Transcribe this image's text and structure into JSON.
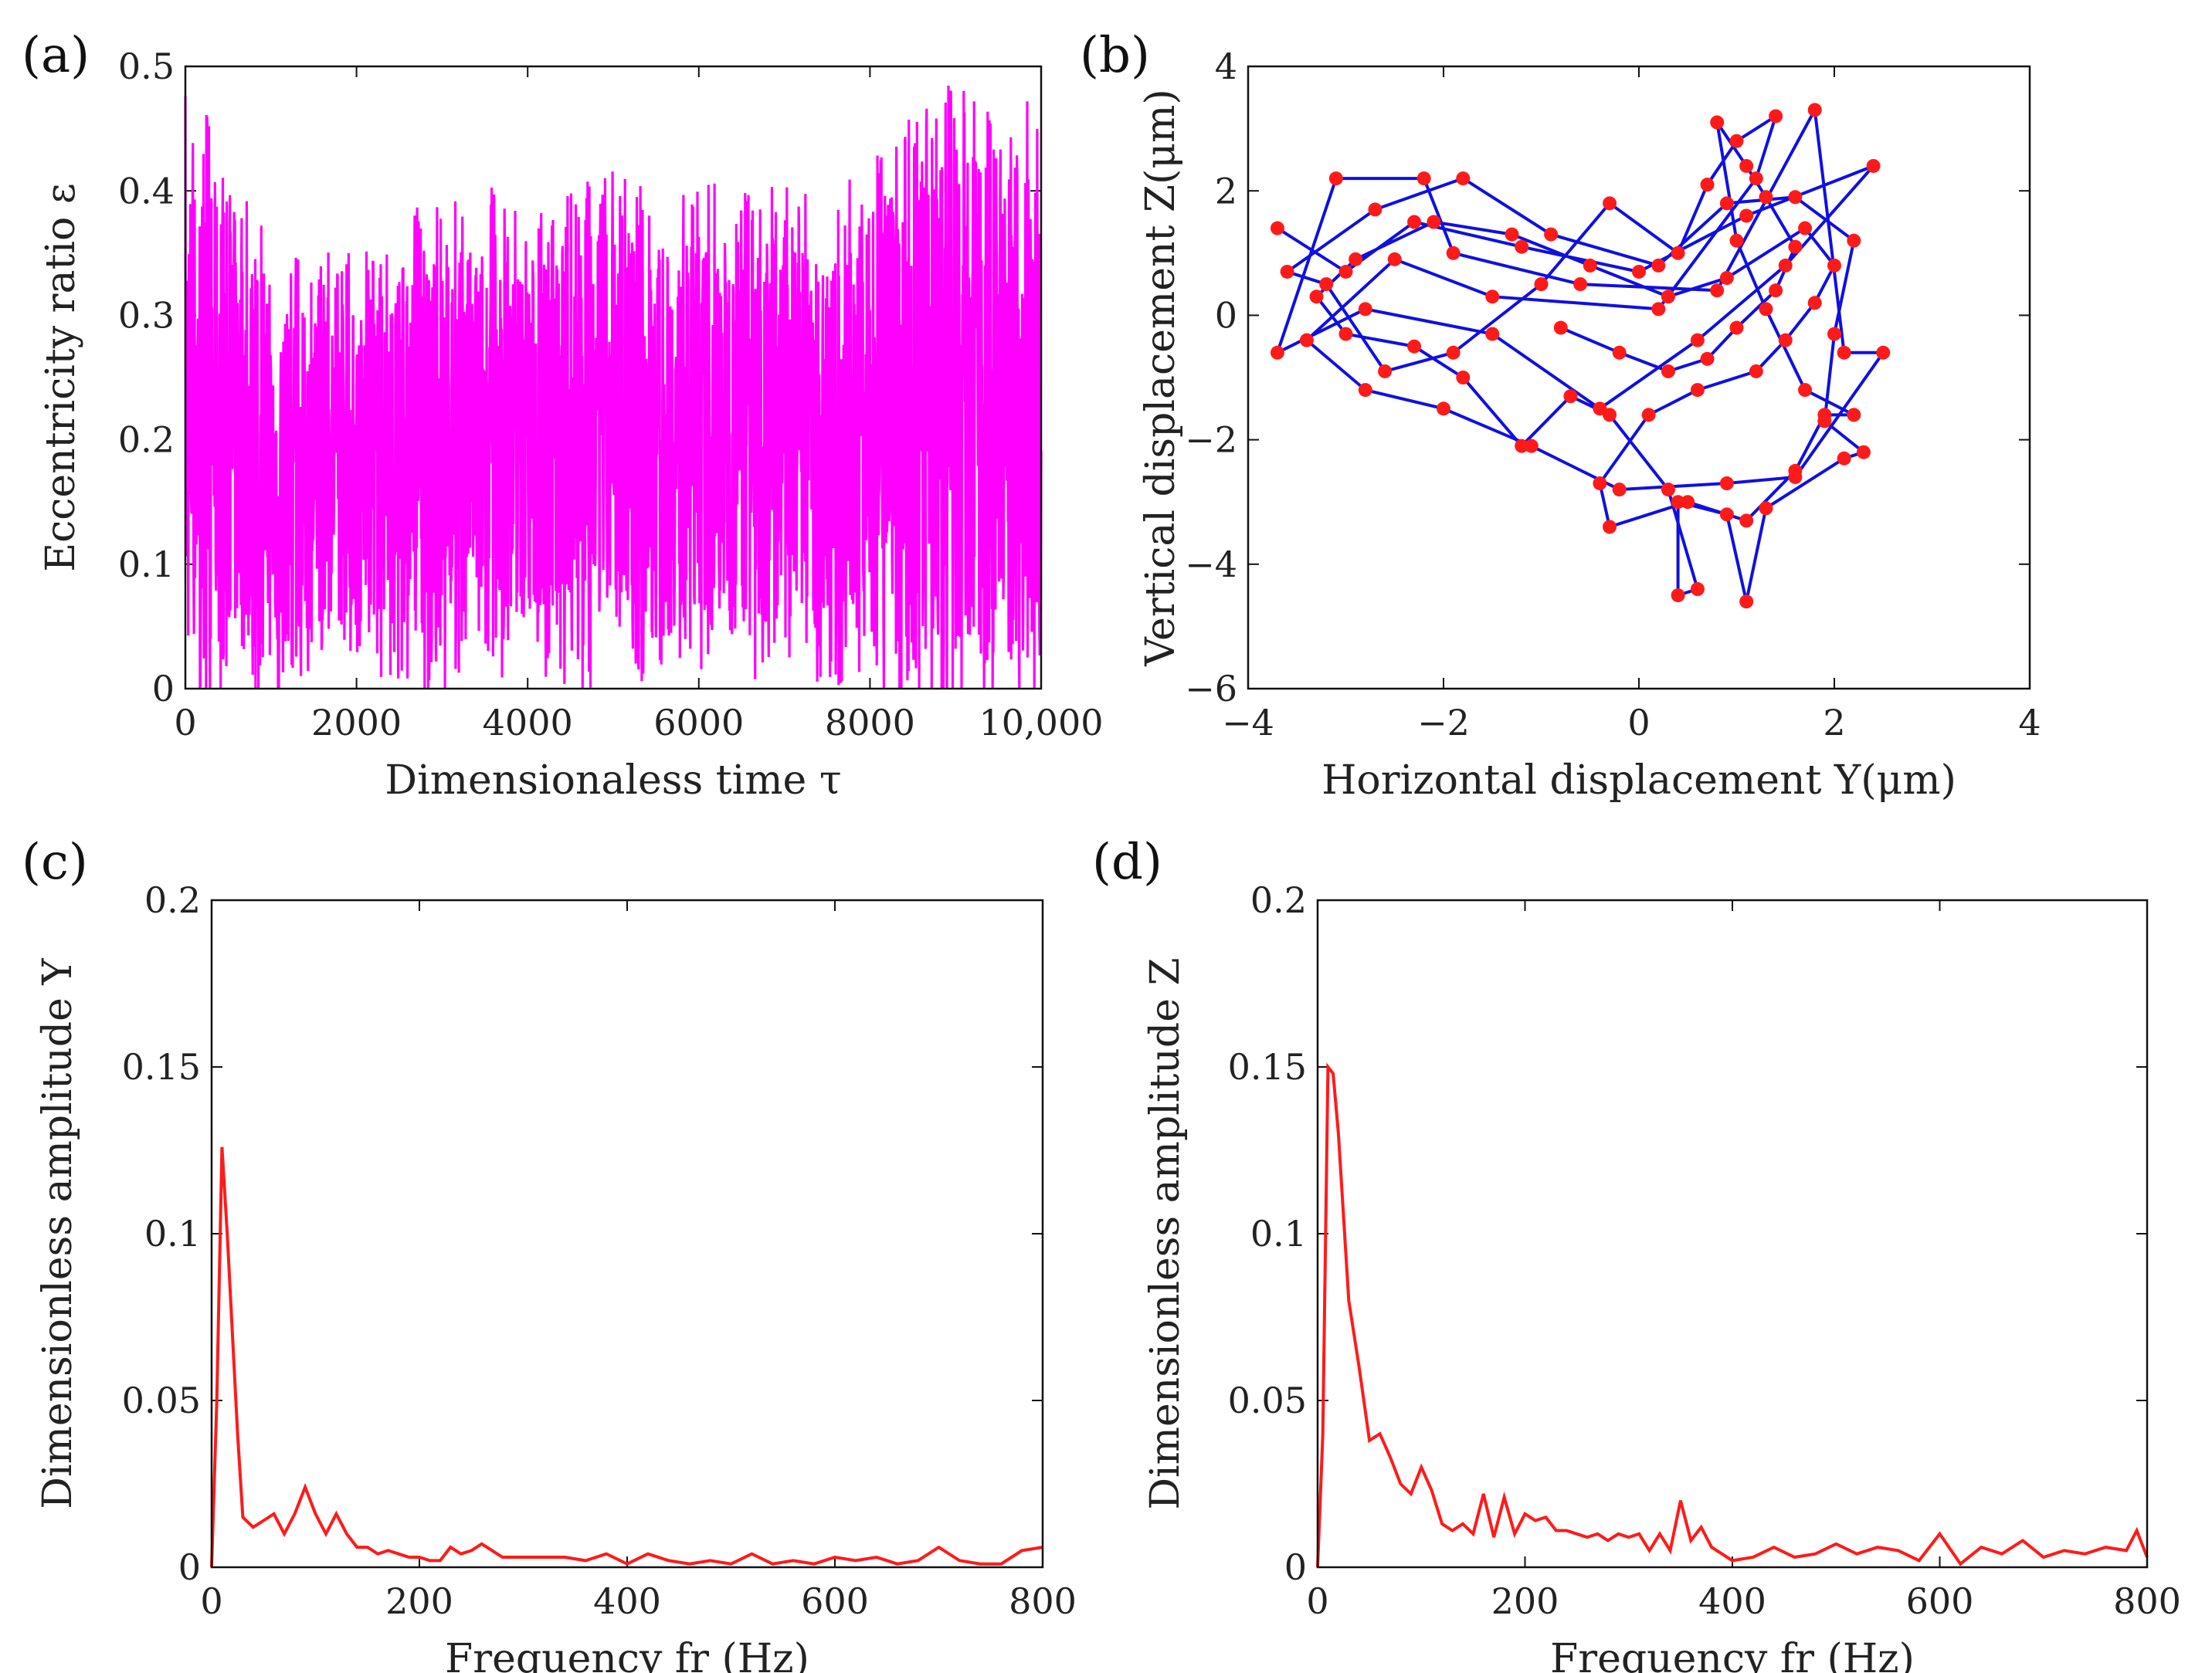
{
  "figure": {
    "panel_labels": [
      "(a)",
      "(b)",
      "(c)",
      "(d)"
    ]
  },
  "chart_data": [
    {
      "type": "line",
      "panel": "(a)",
      "title": "",
      "xlabel": "Dimensionaless time τ",
      "ylabel": "Eccentricity ratio ε",
      "xlim": [
        0,
        10000
      ],
      "ylim": [
        0,
        0.5
      ],
      "xticks": [
        0,
        2000,
        4000,
        6000,
        8000,
        10000
      ],
      "xtick_labels": [
        "0",
        "2000",
        "4000",
        "6000",
        "8000",
        "10,000"
      ],
      "yticks": [
        0,
        0.1,
        0.2,
        0.3,
        0.4,
        0.5
      ],
      "ytick_labels": [
        "0",
        "0.1",
        "0.2",
        "0.3",
        "0.4",
        "0.5"
      ],
      "color": "#ff00ff",
      "series_description": "dense random oscillation",
      "envelope": {
        "x": [
          0,
          500,
          1000,
          1500,
          2000,
          2500,
          3000,
          3500,
          4000,
          4500,
          5000,
          5500,
          6000,
          6500,
          7000,
          7500,
          8000,
          8500,
          9000,
          9500,
          10000
        ],
        "upper": [
          0.43,
          0.4,
          0.31,
          0.3,
          0.31,
          0.33,
          0.35,
          0.36,
          0.35,
          0.36,
          0.37,
          0.35,
          0.36,
          0.37,
          0.36,
          0.34,
          0.38,
          0.41,
          0.44,
          0.41,
          0.43
        ],
        "lower": [
          0.02,
          0.03,
          0.02,
          0.05,
          0.06,
          0.05,
          0.04,
          0.06,
          0.05,
          0.03,
          0.05,
          0.04,
          0.06,
          0.05,
          0.07,
          0.05,
          0.04,
          0.03,
          0.02,
          0.03,
          0.03
        ]
      }
    },
    {
      "type": "scatter",
      "panel": "(b)",
      "title": "",
      "xlabel": "Horizontal displacement Y(μm)",
      "ylabel": "Vertical displacement Z(μm)",
      "xlim": [
        -4,
        4
      ],
      "ylim": [
        -6,
        4
      ],
      "xticks": [
        -4,
        -2,
        0,
        2,
        4
      ],
      "xtick_labels": [
        "−4",
        "−2",
        "0",
        "2",
        "4"
      ],
      "yticks": [
        -6,
        -4,
        -2,
        0,
        2,
        4
      ],
      "ytick_labels": [
        "−6",
        "−4",
        "−2",
        "0",
        "2",
        "4"
      ],
      "line_color": "#1010e0",
      "marker_color": "#ff1a1a",
      "points": [
        [
          -3.7,
          1.4
        ],
        [
          -3.0,
          0.7
        ],
        [
          -2.3,
          1.5
        ],
        [
          -1.2,
          1.1
        ],
        [
          0.0,
          0.7
        ],
        [
          1.1,
          1.6
        ],
        [
          2.4,
          2.4
        ],
        [
          1.5,
          0.8
        ],
        [
          0.6,
          -0.4
        ],
        [
          -0.4,
          -1.5
        ],
        [
          -1.5,
          -0.3
        ],
        [
          -2.8,
          0.1
        ],
        [
          -3.7,
          -0.6
        ],
        [
          -3.1,
          2.2
        ],
        [
          -2.2,
          2.2
        ],
        [
          -1.9,
          1.0
        ],
        [
          -0.6,
          0.5
        ],
        [
          0.8,
          0.4
        ],
        [
          1.8,
          3.3
        ],
        [
          2.1,
          -0.6
        ],
        [
          2.5,
          -0.6
        ],
        [
          1.6,
          -2.6
        ],
        [
          0.9,
          -2.7
        ],
        [
          -0.2,
          -2.8
        ],
        [
          -1.1,
          -2.1
        ],
        [
          -2.0,
          -1.5
        ],
        [
          -2.8,
          -1.2
        ],
        [
          -3.4,
          -0.4
        ],
        [
          -2.5,
          0.9
        ],
        [
          -1.5,
          0.3
        ],
        [
          0.2,
          0.1
        ],
        [
          1.2,
          2.2
        ],
        [
          1.4,
          3.2
        ],
        [
          1.0,
          2.8
        ],
        [
          0.7,
          2.1
        ],
        [
          0.4,
          1.0
        ],
        [
          -0.3,
          1.8
        ],
        [
          -1.0,
          0.5
        ],
        [
          -1.9,
          -0.6
        ],
        [
          -2.6,
          -0.9
        ],
        [
          -3.2,
          0.5
        ],
        [
          -3.6,
          0.7
        ],
        [
          -2.7,
          1.7
        ],
        [
          -1.8,
          2.2
        ],
        [
          -0.9,
          1.3
        ],
        [
          0.2,
          0.8
        ],
        [
          0.9,
          1.8
        ],
        [
          1.6,
          1.9
        ],
        [
          2.2,
          1.2
        ],
        [
          2.0,
          -0.3
        ],
        [
          1.9,
          -1.7
        ],
        [
          2.3,
          -2.2
        ],
        [
          2.1,
          -2.3
        ],
        [
          1.3,
          -3.1
        ],
        [
          1.1,
          -4.6
        ],
        [
          0.9,
          -3.2
        ],
        [
          0.4,
          -3.0
        ],
        [
          0.4,
          -4.5
        ],
        [
          0.6,
          -4.4
        ],
        [
          0.3,
          -2.8
        ],
        [
          -0.3,
          -1.6
        ],
        [
          -0.7,
          -1.3
        ],
        [
          -1.2,
          -2.1
        ],
        [
          -1.8,
          -1.0
        ],
        [
          -2.3,
          -0.5
        ],
        [
          -3.0,
          -0.3
        ],
        [
          -3.3,
          0.3
        ],
        [
          -2.9,
          0.9
        ],
        [
          -2.1,
          1.5
        ],
        [
          -1.3,
          1.3
        ],
        [
          -0.5,
          0.8
        ],
        [
          0.3,
          0.3
        ],
        [
          0.9,
          0.6
        ],
        [
          1.7,
          1.4
        ],
        [
          2.0,
          0.8
        ],
        [
          1.8,
          0.2
        ],
        [
          1.5,
          -0.4
        ],
        [
          1.2,
          -0.9
        ],
        [
          0.6,
          -1.2
        ],
        [
          0.1,
          -1.6
        ],
        [
          -0.4,
          -2.7
        ],
        [
          -0.3,
          -3.4
        ],
        [
          0.5,
          -3.0
        ],
        [
          1.1,
          -3.3
        ],
        [
          1.6,
          -2.5
        ],
        [
          1.9,
          -1.6
        ],
        [
          2.2,
          -1.6
        ],
        [
          1.7,
          -1.2
        ],
        [
          1.3,
          0.1
        ],
        [
          1.0,
          1.2
        ],
        [
          0.8,
          3.1
        ],
        [
          1.1,
          2.4
        ],
        [
          1.3,
          1.9
        ],
        [
          1.6,
          1.1
        ],
        [
          1.4,
          0.4
        ],
        [
          1.0,
          -0.2
        ],
        [
          0.7,
          -0.7
        ],
        [
          0.3,
          -0.9
        ],
        [
          -0.2,
          -0.6
        ],
        [
          -0.8,
          -0.2
        ]
      ]
    },
    {
      "type": "line",
      "panel": "(c)",
      "title": "",
      "xlabel": "Frequency fr (Hz)",
      "ylabel": "Dimensionless amplitude Y",
      "xlim": [
        0,
        800
      ],
      "ylim": [
        0,
        0.2
      ],
      "xticks": [
        0,
        200,
        400,
        600,
        800
      ],
      "xtick_labels": [
        "0",
        "200",
        "400",
        "600",
        "800"
      ],
      "yticks": [
        0,
        0.05,
        0.1,
        0.15,
        0.2
      ],
      "ytick_labels": [
        "0",
        "0.05",
        "0.1",
        "0.15",
        "0.2"
      ],
      "color": "#ff1a1a",
      "x": [
        0,
        5,
        10,
        15,
        20,
        25,
        30,
        40,
        50,
        60,
        70,
        80,
        90,
        100,
        110,
        120,
        130,
        140,
        150,
        160,
        170,
        180,
        190,
        200,
        210,
        220,
        230,
        240,
        250,
        260,
        270,
        280,
        290,
        300,
        320,
        340,
        360,
        380,
        400,
        420,
        440,
        460,
        480,
        500,
        520,
        540,
        560,
        580,
        600,
        620,
        640,
        660,
        680,
        700,
        720,
        740,
        760,
        780,
        800
      ],
      "y": [
        0.0,
        0.05,
        0.126,
        0.1,
        0.07,
        0.04,
        0.015,
        0.012,
        0.014,
        0.016,
        0.01,
        0.016,
        0.024,
        0.016,
        0.01,
        0.016,
        0.01,
        0.006,
        0.006,
        0.004,
        0.005,
        0.004,
        0.003,
        0.003,
        0.002,
        0.002,
        0.006,
        0.004,
        0.005,
        0.007,
        0.005,
        0.003,
        0.003,
        0.003,
        0.003,
        0.003,
        0.002,
        0.004,
        0.001,
        0.004,
        0.002,
        0.001,
        0.002,
        0.001,
        0.004,
        0.001,
        0.002,
        0.001,
        0.003,
        0.002,
        0.003,
        0.001,
        0.002,
        0.006,
        0.002,
        0.001,
        0.001,
        0.005,
        0.006
      ]
    },
    {
      "type": "line",
      "panel": "(d)",
      "title": "",
      "xlabel": "Frequency fr (Hz)",
      "ylabel": "Dimensionless amplitude Z",
      "xlim": [
        0,
        800
      ],
      "ylim": [
        0,
        0.2
      ],
      "xticks": [
        0,
        200,
        400,
        600,
        800
      ],
      "xtick_labels": [
        "0",
        "200",
        "400",
        "600",
        "800"
      ],
      "yticks": [
        0,
        0.05,
        0.1,
        0.15,
        0.2
      ],
      "ytick_labels": [
        "0",
        "0.05",
        "0.1",
        "0.15",
        "0.2"
      ],
      "color": "#ff1a1a",
      "x": [
        0,
        5,
        10,
        15,
        20,
        30,
        40,
        50,
        60,
        70,
        80,
        90,
        100,
        110,
        120,
        130,
        140,
        150,
        160,
        170,
        180,
        190,
        200,
        210,
        220,
        230,
        240,
        250,
        260,
        270,
        280,
        290,
        300,
        310,
        320,
        330,
        340,
        350,
        360,
        370,
        380,
        400,
        420,
        440,
        460,
        480,
        500,
        520,
        540,
        560,
        580,
        600,
        620,
        640,
        660,
        680,
        700,
        720,
        740,
        760,
        780,
        790,
        800
      ],
      "y": [
        0.0,
        0.04,
        0.15,
        0.148,
        0.13,
        0.08,
        0.06,
        0.038,
        0.04,
        0.033,
        0.025,
        0.022,
        0.03,
        0.023,
        0.013,
        0.011,
        0.013,
        0.01,
        0.022,
        0.009,
        0.021,
        0.01,
        0.016,
        0.014,
        0.015,
        0.011,
        0.011,
        0.01,
        0.009,
        0.01,
        0.008,
        0.01,
        0.009,
        0.01,
        0.005,
        0.01,
        0.005,
        0.02,
        0.008,
        0.012,
        0.006,
        0.002,
        0.003,
        0.006,
        0.003,
        0.004,
        0.007,
        0.004,
        0.006,
        0.005,
        0.002,
        0.01,
        0.001,
        0.006,
        0.004,
        0.008,
        0.003,
        0.005,
        0.004,
        0.006,
        0.005,
        0.011,
        0.003
      ]
    }
  ]
}
